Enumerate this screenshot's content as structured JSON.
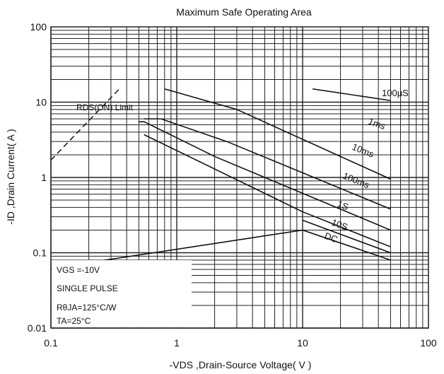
{
  "chart_data": {
    "type": "line",
    "title": "Maximum Safe Operating Area",
    "xlabel": "-VDS ,Drain-Source Voltage( V )",
    "ylabel": "-ID ,Drain Current( A )",
    "xscale": "log",
    "yscale": "log",
    "xlim": [
      0.1,
      100
    ],
    "ylim": [
      0.01,
      100
    ],
    "grid": true,
    "x_tick_labels": [
      "0.1",
      "1",
      "10",
      "100"
    ],
    "y_tick_labels": [
      "0.01",
      "0.1",
      "1",
      "10",
      "100"
    ],
    "rds_limit": {
      "label": "RDS(ON) Limit",
      "points": [
        [
          0.1,
          1.7
        ],
        [
          0.35,
          15
        ]
      ]
    },
    "series": [
      {
        "name": "100µS",
        "points": [
          [
            12,
            15
          ],
          [
            50,
            10.5
          ]
        ]
      },
      {
        "name": "1ms",
        "points": [
          [
            0.8,
            15
          ],
          [
            3,
            8
          ],
          [
            50,
            0.95
          ]
        ]
      },
      {
        "name": "10ms",
        "points": [
          [
            0.55,
            6
          ],
          [
            0.75,
            6
          ],
          [
            2.5,
            3
          ],
          [
            50,
            0.38
          ]
        ]
      },
      {
        "name": "100ms",
        "points": [
          [
            0.5,
            5.5
          ],
          [
            0.55,
            5.5
          ],
          [
            2,
            1.9
          ],
          [
            50,
            0.2
          ]
        ]
      },
      {
        "name": "1S",
        "points": [
          [
            0.55,
            3.7
          ],
          [
            10,
            0.35
          ],
          [
            50,
            0.12
          ]
        ]
      },
      {
        "name": "10S",
        "points": [
          [
            10,
            0.27
          ],
          [
            50,
            0.1
          ]
        ]
      },
      {
        "name": "DC",
        "points": [
          [
            0.1,
            0.062
          ],
          [
            10,
            0.2
          ],
          [
            50,
            0.08
          ]
        ]
      }
    ],
    "curve_labels": [
      "100µS",
      "1ms",
      "10ms",
      "100ms",
      "1S",
      "10S",
      "DC"
    ],
    "conditions": [
      "VGS =-10V",
      "SINGLE PULSE",
      "RθJA=125°C/W",
      "TA=25°C"
    ]
  }
}
